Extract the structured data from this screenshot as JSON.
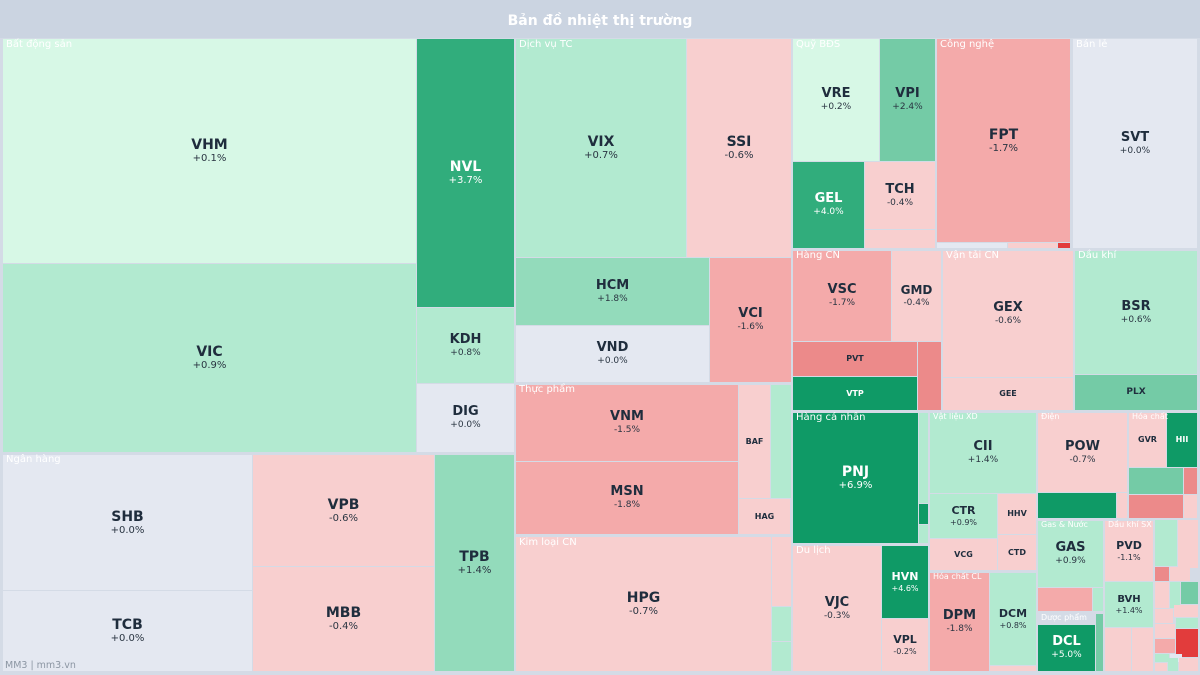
{
  "title": "Bản đồ nhiệt thị trường",
  "footer": "MM3 | mm3.vn",
  "colors": {
    "strong_green": "#0f9a66",
    "green": "#31ad7c",
    "mid_green": "#74cba6",
    "light_green": "#93dbbb",
    "pale_green": "#b2ead0",
    "very_pale_green": "#d7f8e6",
    "neutral": "#e4e8f1",
    "pale_red": "#f8cfcf",
    "light_red": "#f4aaaa",
    "red": "#ec8a8a",
    "strong_red": "#e23c3c"
  },
  "chart_data": {
    "type": "treemap",
    "title": "Bản đồ nhiệt thị trường",
    "groups": [
      {
        "name": "Bất động sản",
        "tickers": [
          {
            "symbol": "VHM",
            "change": "+0.1%"
          },
          {
            "symbol": "VIC",
            "change": "+0.9%"
          },
          {
            "symbol": "NVL",
            "change": "+3.7%"
          },
          {
            "symbol": "KDH",
            "change": "+0.8%"
          },
          {
            "symbol": "DIG",
            "change": "+0.0%"
          }
        ]
      },
      {
        "name": "Ngân hàng",
        "tickers": [
          {
            "symbol": "SHB",
            "change": "+0.0%"
          },
          {
            "symbol": "TCB",
            "change": "+0.0%"
          },
          {
            "symbol": "VPB",
            "change": "-0.6%"
          },
          {
            "symbol": "MBB",
            "change": "-0.4%"
          },
          {
            "symbol": "TPB",
            "change": "+1.4%"
          }
        ]
      },
      {
        "name": "Dịch vụ TC",
        "tickers": [
          {
            "symbol": "VIX",
            "change": "+0.7%"
          },
          {
            "symbol": "SSI",
            "change": "-0.6%"
          },
          {
            "symbol": "HCM",
            "change": "+1.8%"
          },
          {
            "symbol": "VND",
            "change": "+0.0%"
          },
          {
            "symbol": "VCI",
            "change": "-1.6%"
          }
        ]
      },
      {
        "name": "Thực phẩm",
        "tickers": [
          {
            "symbol": "VNM",
            "change": "-1.5%"
          },
          {
            "symbol": "MSN",
            "change": "-1.8%"
          },
          {
            "symbol": "BAF",
            "change": ""
          },
          {
            "symbol": "HAG",
            "change": ""
          }
        ]
      },
      {
        "name": "Kim loại CN",
        "tickers": [
          {
            "symbol": "HPG",
            "change": "-0.7%"
          }
        ]
      },
      {
        "name": "Quỹ BĐS",
        "tickers": [
          {
            "symbol": "VRE",
            "change": "+0.2%"
          },
          {
            "symbol": "VPI",
            "change": "+2.4%"
          },
          {
            "symbol": "GEL",
            "change": "+4.0%"
          },
          {
            "symbol": "TCH",
            "change": "-0.4%"
          }
        ]
      },
      {
        "name": "Công nghệ",
        "tickers": [
          {
            "symbol": "FPT",
            "change": "-1.7%"
          }
        ]
      },
      {
        "name": "Bán lẻ",
        "tickers": [
          {
            "symbol": "SVT",
            "change": "+0.0%"
          }
        ]
      },
      {
        "name": "Hàng CN",
        "tickers": [
          {
            "symbol": "VSC",
            "change": "-1.7%"
          },
          {
            "symbol": "GMD",
            "change": "-0.4%"
          },
          {
            "symbol": "PVT",
            "change": ""
          },
          {
            "symbol": "VTP",
            "change": ""
          }
        ]
      },
      {
        "name": "Vận tải CN",
        "tickers": [
          {
            "symbol": "GEX",
            "change": "-0.6%"
          },
          {
            "symbol": "GEE",
            "change": ""
          }
        ]
      },
      {
        "name": "Dầu khí",
        "tickers": [
          {
            "symbol": "BSR",
            "change": "+0.6%"
          },
          {
            "symbol": "PLX",
            "change": ""
          }
        ]
      },
      {
        "name": "Hàng cá nhân",
        "tickers": [
          {
            "symbol": "PNJ",
            "change": "+6.9%"
          }
        ]
      },
      {
        "name": "Du lịch",
        "tickers": [
          {
            "symbol": "VJC",
            "change": "-0.3%"
          },
          {
            "symbol": "HVN",
            "change": "+4.6%"
          },
          {
            "symbol": "VPL",
            "change": "-0.2%"
          }
        ]
      },
      {
        "name": "Vật liệu XD",
        "tickers": [
          {
            "symbol": "CII",
            "change": "+1.4%"
          },
          {
            "symbol": "CTR",
            "change": "+0.9%"
          },
          {
            "symbol": "HHV",
            "change": ""
          },
          {
            "symbol": "VCG",
            "change": ""
          },
          {
            "symbol": "CTD",
            "change": ""
          }
        ]
      },
      {
        "name": "Điện",
        "tickers": [
          {
            "symbol": "POW",
            "change": "-0.7%"
          }
        ]
      },
      {
        "name": "Hóa chất",
        "tickers": [
          {
            "symbol": "GVR",
            "change": ""
          },
          {
            "symbol": "HII",
            "change": ""
          }
        ]
      },
      {
        "name": "Gas & Nước",
        "tickers": [
          {
            "symbol": "GAS",
            "change": "+0.9%"
          }
        ]
      },
      {
        "name": "Dầu khí SX",
        "tickers": [
          {
            "symbol": "PVD",
            "change": "-1.1%"
          },
          {
            "symbol": "BVH",
            "change": "+1.4%"
          }
        ]
      },
      {
        "name": "Hóa chất CL",
        "tickers": [
          {
            "symbol": "DPM",
            "change": "-1.8%"
          },
          {
            "symbol": "DCM",
            "change": "+0.8%"
          }
        ]
      },
      {
        "name": "Dược phẩm",
        "tickers": [
          {
            "symbol": "DCL",
            "change": "+5.0%"
          }
        ]
      }
    ]
  }
}
